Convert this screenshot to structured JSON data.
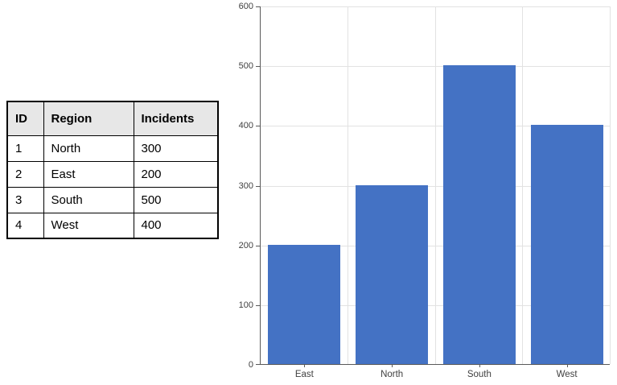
{
  "table": {
    "headers": [
      "ID",
      "Region",
      "Incidents"
    ],
    "rows": [
      [
        "1",
        "North",
        "300"
      ],
      [
        "2",
        "East",
        "200"
      ],
      [
        "3",
        "South",
        "500"
      ],
      [
        "4",
        "West",
        "400"
      ]
    ]
  },
  "chart_data": {
    "type": "bar",
    "categories": [
      "East",
      "North",
      "South",
      "West"
    ],
    "values": [
      200,
      300,
      500,
      400
    ],
    "title": "",
    "xlabel": "",
    "ylabel": "",
    "ylim": [
      0,
      600
    ],
    "ytick_interval": 100,
    "ytick_labels": [
      "0",
      "100",
      "200",
      "300",
      "400",
      "500",
      "600"
    ],
    "grid": true,
    "legend": "none",
    "bar_color": "#4472C4",
    "gridline_color": "#e2e2e2",
    "axis_color": "#595959",
    "label_color": "#404040"
  },
  "colors": {
    "table_header_bg": "#e7e7e7",
    "table_border": "#000000",
    "background": "#ffffff"
  }
}
